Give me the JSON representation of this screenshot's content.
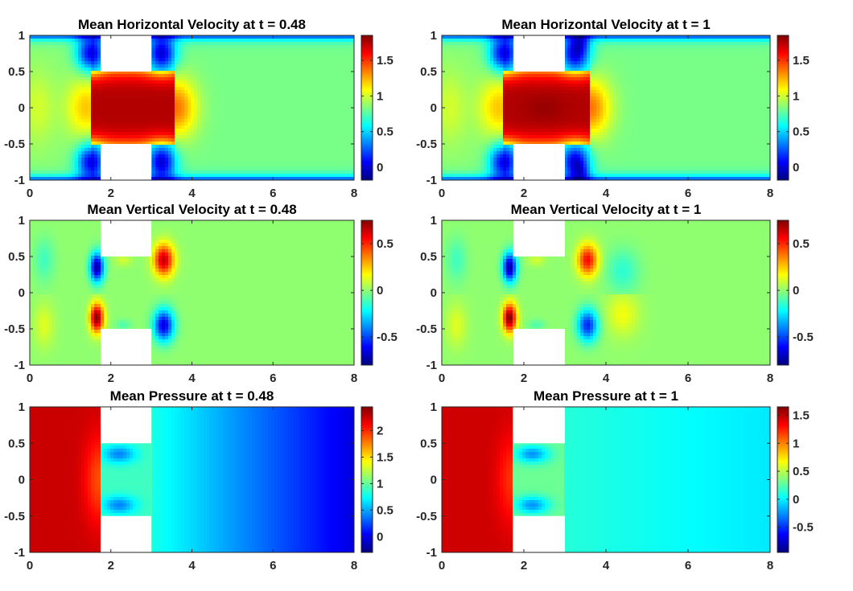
{
  "chart_data": [
    {
      "type": "heatmap",
      "title": "Mean Horizontal Velocity at t = 0.48",
      "field": "horizontal",
      "xlim": [
        0,
        8
      ],
      "ylim": [
        -1,
        1
      ],
      "xticks": [
        "0",
        "2",
        "4",
        "6",
        "8"
      ],
      "yticks": [
        "1",
        "0.5",
        "0",
        "-0.5",
        "-1"
      ],
      "colorbar": {
        "min": -0.18,
        "max": 1.85,
        "ticks": [
          -0.5,
          0,
          0.5,
          1,
          1.5
        ],
        "labels": [
          "0",
          "0.5",
          "1",
          "1.5"
        ],
        "values": [
          0,
          0.5,
          1,
          1.5
        ]
      },
      "obstacles": [
        {
          "x": [
            1.75,
            3.0
          ],
          "y": [
            0.5,
            1.0
          ]
        },
        {
          "x": [
            1.75,
            3.0
          ],
          "y": [
            -1.0,
            -0.5
          ]
        }
      ],
      "colormap": "jet"
    },
    {
      "type": "heatmap",
      "title": "Mean Horizontal Velocity at t = 1",
      "field": "horizontal",
      "xlim": [
        0,
        8
      ],
      "ylim": [
        -1,
        1
      ],
      "xticks": [
        "0",
        "2",
        "4",
        "6",
        "8"
      ],
      "yticks": [
        "1",
        "0.5",
        "0",
        "-0.5",
        "-1"
      ],
      "colorbar": {
        "min": -0.18,
        "max": 1.85,
        "labels": [
          "0",
          "0.5",
          "1",
          "1.5"
        ],
        "values": [
          0,
          0.5,
          1,
          1.5
        ]
      },
      "obstacles": [
        {
          "x": [
            1.75,
            3.0
          ],
          "y": [
            0.5,
            1.0
          ]
        },
        {
          "x": [
            1.75,
            3.0
          ],
          "y": [
            -1.0,
            -0.5
          ]
        }
      ],
      "colormap": "jet"
    },
    {
      "type": "heatmap",
      "title": "Mean Vertical Velocity at t = 0.48",
      "field": "vertical",
      "xlim": [
        0,
        8
      ],
      "ylim": [
        -1,
        1
      ],
      "xticks": [
        "0",
        "2",
        "4",
        "6",
        "8"
      ],
      "yticks": [
        "1",
        "0.5",
        "0",
        "-0.5",
        "-1"
      ],
      "colorbar": {
        "min": -0.8,
        "max": 0.75,
        "labels": [
          "-0.5",
          "0",
          "0.5"
        ],
        "values": [
          -0.5,
          0,
          0.5
        ]
      },
      "obstacles": [
        {
          "x": [
            1.75,
            3.0
          ],
          "y": [
            0.5,
            1.0
          ]
        },
        {
          "x": [
            1.75,
            3.0
          ],
          "y": [
            -1.0,
            -0.5
          ]
        }
      ],
      "colormap": "jet"
    },
    {
      "type": "heatmap",
      "title": "Mean Vertical Velocity at t = 1",
      "field": "vertical",
      "xlim": [
        0,
        8
      ],
      "ylim": [
        -1,
        1
      ],
      "xticks": [
        "0",
        "2",
        "4",
        "6",
        "8"
      ],
      "yticks": [
        "1",
        "0.5",
        "0",
        "-0.5",
        "-1"
      ],
      "colorbar": {
        "min": -0.8,
        "max": 0.75,
        "labels": [
          "-0.5",
          "0",
          "0.5"
        ],
        "values": [
          -0.5,
          0,
          0.5
        ]
      },
      "obstacles": [
        {
          "x": [
            1.75,
            3.0
          ],
          "y": [
            0.5,
            1.0
          ]
        },
        {
          "x": [
            1.75,
            3.0
          ],
          "y": [
            -1.0,
            -0.5
          ]
        }
      ],
      "colormap": "jet"
    },
    {
      "type": "heatmap",
      "title": "Mean Pressure at t = 0.48",
      "field": "pressure",
      "xlim": [
        0,
        8
      ],
      "ylim": [
        -1,
        1
      ],
      "xticks": [
        "0",
        "2",
        "4",
        "6",
        "8"
      ],
      "yticks": [
        "1",
        "0.5",
        "0",
        "-0.5",
        "-1"
      ],
      "colorbar": {
        "min": -0.3,
        "max": 2.45,
        "labels": [
          "0",
          "0.5",
          "1",
          "1.5",
          "2"
        ],
        "values": [
          0,
          0.5,
          1,
          1.5,
          2
        ]
      },
      "obstacles": [
        {
          "x": [
            1.75,
            3.0
          ],
          "y": [
            0.5,
            1.0
          ]
        },
        {
          "x": [
            1.75,
            3.0
          ],
          "y": [
            -1.0,
            -0.5
          ]
        }
      ],
      "colormap": "jet"
    },
    {
      "type": "heatmap",
      "title": "Mean Pressure at t = 1",
      "field": "pressure",
      "xlim": [
        0,
        8
      ],
      "ylim": [
        -1,
        1
      ],
      "xticks": [
        "0",
        "2",
        "4",
        "6",
        "8"
      ],
      "yticks": [
        "1",
        "0.5",
        "0",
        "-0.5",
        "-1"
      ],
      "colorbar": {
        "min": -0.95,
        "max": 1.65,
        "labels": [
          "-0.5",
          "0",
          "0.5",
          "1",
          "1.5"
        ],
        "values": [
          -0.5,
          0,
          0.5,
          1,
          1.5
        ]
      },
      "obstacles": [
        {
          "x": [
            1.75,
            3.0
          ],
          "y": [
            0.5,
            1.0
          ]
        },
        {
          "x": [
            1.75,
            3.0
          ],
          "y": [
            -1.0,
            -0.5
          ]
        }
      ],
      "colormap": "jet"
    }
  ]
}
